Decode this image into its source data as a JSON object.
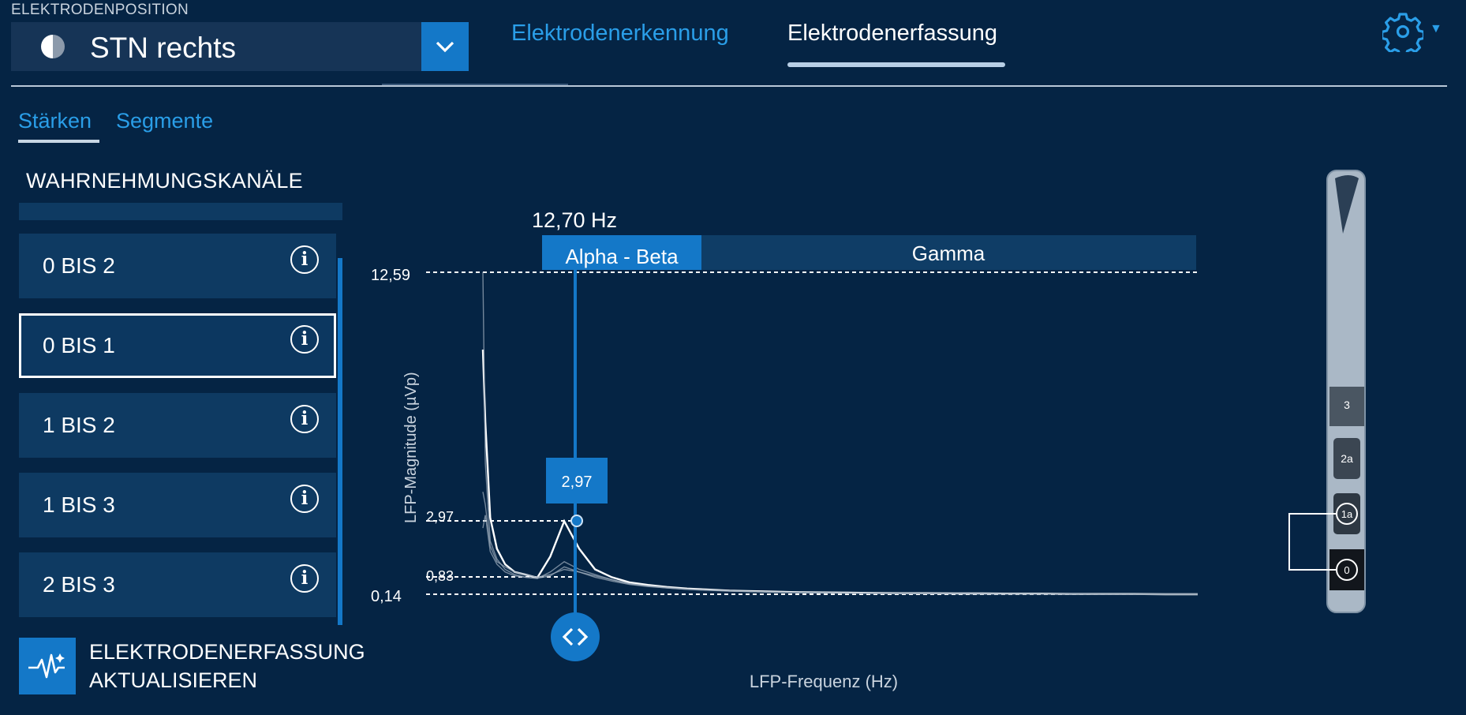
{
  "header": {
    "position_label": "ELEKTRODENPOSITION",
    "position_value": "STN rechts",
    "tabs": [
      "Elektrodenerkennung",
      "Elektrodenerfassung"
    ],
    "active_tab": "Elektrodenerfassung",
    "icons": {
      "half_moon": "half-moon-icon",
      "dropdown": "chevron-down-icon",
      "settings": "gear-icon",
      "settings_caret": "caret-down-icon"
    }
  },
  "subtabs": [
    "Stärken",
    "Segmente"
  ],
  "active_subtab": "Stärken",
  "channels": {
    "title": "WAHRNEHMUNGSKANÄLE",
    "items": [
      "0 BIS 2",
      "0 BIS 1",
      "1 BIS 2",
      "1 BIS 3",
      "2 BIS 3"
    ],
    "selected": "0 BIS 1",
    "info_icon": "info-icon"
  },
  "update_button": {
    "line1": "ELEKTRODENERFASSUNG",
    "line2": "AKTUALISIEREN",
    "icon": "waveform-icon"
  },
  "chart_data": {
    "type": "line",
    "cursor_frequency_label": "12,70 Hz",
    "bands": [
      "Alpha - Beta",
      "Gamma"
    ],
    "active_band": "Alpha - Beta",
    "ylabel": "LFP-Magnitude (µVp)",
    "xlabel": "LFP-Frequenz (Hz)",
    "reference_lines": [
      "12,59",
      "2,97",
      "0,83",
      "0,14"
    ],
    "peak_value_label": "2,97",
    "cursor_control_icon": "left-right-arrows-icon",
    "series": [
      {
        "values": [
          9.6,
          6.8,
          3.1,
          1.9,
          1.3,
          1.0,
          0.9,
          0.78,
          1.6,
          2.97,
          1.9,
          1.1,
          0.8,
          0.6,
          0.5,
          0.42,
          0.36,
          0.32,
          0.28,
          0.26,
          0.24,
          0.22,
          0.21,
          0.2,
          0.19,
          0.18,
          0.18,
          0.17,
          0.17,
          0.16,
          0.16,
          0.15,
          0.15,
          0.15,
          0.14,
          0.14
        ]
      },
      {
        "values": [
          12.6,
          5.2,
          2.2,
          1.5,
          1.1,
          0.9,
          0.8,
          0.75,
          1.0,
          1.4,
          1.1,
          0.9,
          0.7,
          0.55,
          0.45,
          0.38,
          0.33,
          0.3,
          0.27,
          0.24,
          0.22,
          0.21,
          0.2,
          0.19,
          0.18,
          0.17,
          0.17,
          0.16,
          0.16,
          0.15,
          0.15,
          0.15,
          0.14,
          0.14,
          0.14,
          0.14
        ]
      },
      {
        "values": [
          4.1,
          3.6,
          2.0,
          1.4,
          1.2,
          1.0,
          0.9,
          0.8,
          0.9,
          1.1,
          1.0,
          0.85,
          0.7,
          0.55,
          0.46,
          0.4,
          0.34,
          0.3,
          0.27,
          0.25,
          0.23,
          0.21,
          0.2,
          0.19,
          0.18,
          0.17,
          0.17,
          0.16,
          0.16,
          0.15,
          0.15,
          0.15,
          0.14,
          0.14,
          0.14,
          0.14
        ]
      },
      {
        "values": [
          2.7,
          3.2,
          1.8,
          1.3,
          1.0,
          0.85,
          0.8,
          0.76,
          0.85,
          1.2,
          1.0,
          0.8,
          0.65,
          0.52,
          0.44,
          0.38,
          0.33,
          0.29,
          0.26,
          0.24,
          0.22,
          0.2,
          0.19,
          0.18,
          0.17,
          0.17,
          0.16,
          0.16,
          0.15,
          0.15,
          0.15,
          0.14,
          0.14,
          0.14,
          0.14,
          0.14
        ]
      }
    ]
  },
  "electrode": {
    "contacts": [
      "3",
      "2a",
      "1a",
      "0"
    ],
    "selected_pair": [
      "1a",
      "0"
    ]
  }
}
